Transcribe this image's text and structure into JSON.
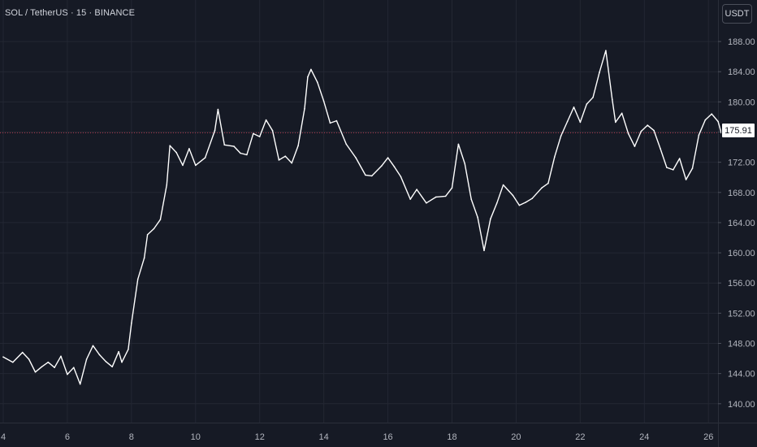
{
  "header": {
    "symbol_title": "SOL / TetherUS · 15 · BINANCE",
    "currency_button": "USDT"
  },
  "current_price": {
    "label": "175.91",
    "value": 175.91,
    "line_color": "#b2384d"
  },
  "colors": {
    "background": "#161a25",
    "price_line": "#ffffff",
    "grid": "#232733",
    "axis_text": "#b2b5be"
  },
  "chart_data": {
    "type": "line",
    "title": "SOL / TetherUS · 15 · BINANCE",
    "xlabel": "",
    "ylabel": "",
    "y_ticks": [
      140,
      144,
      148,
      152,
      156,
      160,
      164,
      168,
      172,
      176,
      180,
      184,
      188
    ],
    "y_tick_labels": [
      "140.00",
      "144.00",
      "148.00",
      "152.00",
      "156.00",
      "160.00",
      "164.00",
      "168.00",
      "172.00",
      "176.00",
      "180.00",
      "184.00",
      "188.00"
    ],
    "x_ticks": [
      4,
      6,
      8,
      10,
      12,
      14,
      16,
      18,
      20,
      22,
      24,
      26
    ],
    "x_tick_labels": [
      "4",
      "6",
      "8",
      "10",
      "12",
      "14",
      "16",
      "18",
      "20",
      "22",
      "24",
      "26"
    ],
    "xlim": [
      4,
      26.4
    ],
    "ylim": [
      137.5,
      193.5
    ],
    "grid": true,
    "series": [
      {
        "x": [
          4.0,
          4.3,
          4.6,
          4.8,
          5.0,
          5.2,
          5.4,
          5.6,
          5.8,
          6.0,
          6.2,
          6.4,
          6.6,
          6.8,
          7.0,
          7.2,
          7.4,
          7.6,
          7.7,
          7.9,
          8.0,
          8.2,
          8.4,
          8.5,
          8.7,
          8.9,
          9.1,
          9.2,
          9.4,
          9.6,
          9.8,
          10.0,
          10.3,
          10.6,
          10.7,
          10.9,
          11.2,
          11.4,
          11.6,
          11.8,
          12.0,
          12.2,
          12.4,
          12.6,
          12.8,
          13.0,
          13.2,
          13.4,
          13.5,
          13.6,
          13.8,
          14.0,
          14.2,
          14.4,
          14.7,
          15.0,
          15.3,
          15.5,
          15.8,
          16.0,
          16.2,
          16.4,
          16.7,
          16.9,
          17.2,
          17.5,
          17.8,
          18.0,
          18.2,
          18.4,
          18.6,
          18.8,
          19.0,
          19.2,
          19.4,
          19.6,
          19.9,
          20.1,
          20.3,
          20.5,
          20.8,
          21.0,
          21.2,
          21.4,
          21.6,
          21.8,
          22.0,
          22.2,
          22.4,
          22.6,
          22.8,
          23.0,
          23.1,
          23.3,
          23.5,
          23.7,
          23.9,
          24.1,
          24.3,
          24.5,
          24.7,
          24.9,
          25.1,
          25.3,
          25.5,
          25.7,
          25.9,
          26.1,
          26.3,
          26.4
        ],
        "y": [
          146.2,
          145.5,
          146.8,
          145.9,
          144.2,
          144.9,
          145.5,
          144.8,
          146.3,
          143.9,
          144.8,
          142.6,
          145.9,
          147.7,
          146.5,
          145.6,
          144.9,
          146.9,
          145.5,
          147.2,
          150.7,
          156.5,
          159.3,
          162.4,
          163.2,
          164.4,
          169.0,
          174.2,
          173.3,
          171.6,
          173.8,
          171.6,
          172.6,
          176.2,
          179.0,
          174.3,
          174.1,
          173.2,
          173.0,
          175.8,
          175.4,
          177.6,
          176.2,
          172.3,
          172.8,
          171.9,
          174.2,
          179.1,
          183.3,
          184.3,
          182.6,
          180.1,
          177.2,
          177.5,
          174.4,
          172.6,
          170.3,
          170.2,
          171.5,
          172.6,
          171.4,
          170.1,
          167.1,
          168.4,
          166.6,
          167.4,
          167.5,
          168.6,
          174.4,
          171.8,
          167.1,
          164.7,
          160.3,
          164.5,
          166.6,
          169.0,
          167.6,
          166.3,
          166.7,
          167.2,
          168.6,
          169.2,
          172.7,
          175.5,
          177.4,
          179.3,
          177.3,
          179.7,
          180.6,
          183.9,
          186.8,
          180.3,
          177.3,
          178.5,
          175.8,
          174.1,
          176.1,
          176.9,
          176.2,
          173.8,
          171.3,
          171.0,
          172.5,
          169.7,
          171.2,
          175.6,
          177.6,
          178.4,
          177.4,
          175.9
        ]
      }
    ]
  }
}
